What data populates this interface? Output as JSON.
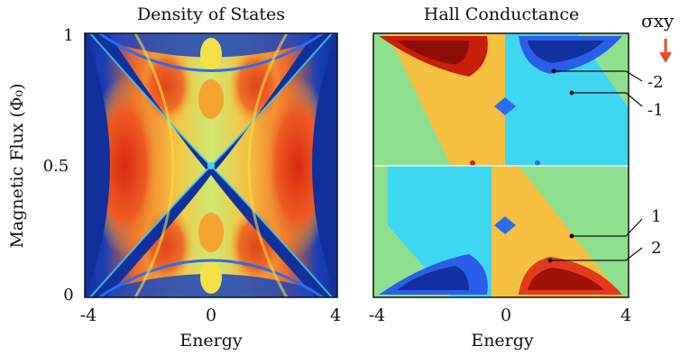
{
  "chart_data": [
    {
      "type": "heatmap",
      "title": "Density of States",
      "xlabel": "Energy",
      "ylabel": "Magnetic Flux (Φ₀)",
      "xlim": [
        -4,
        4
      ],
      "ylim": [
        0,
        1
      ],
      "xticks": [
        "-4",
        "0",
        "4"
      ],
      "yticks": [
        "0",
        "0.5",
        "1"
      ],
      "colormap": "jet",
      "description_values": "Hofstadter butterfly density of states vs energy and magnetic flux"
    },
    {
      "type": "heatmap",
      "title": "Hall Conductance",
      "xlabel": "Energy",
      "xlim": [
        -4,
        4
      ],
      "ylim": [
        0,
        1
      ],
      "xticks": [
        "-4",
        "0",
        "4"
      ],
      "colormap": "jet",
      "legend_title": "σxy",
      "annotations": [
        {
          "label": "-2",
          "energy": 1.8,
          "flux": 0.88
        },
        {
          "label": "-1",
          "energy": 2.3,
          "flux": 0.78
        },
        {
          "label": "1",
          "energy": 2.0,
          "flux": 0.22
        },
        {
          "label": "2",
          "energy": 1.6,
          "flux": 0.12
        }
      ]
    }
  ],
  "colors": {
    "deep_blue": "#10309a",
    "blue": "#2a6df0",
    "cyan": "#3fd6f2",
    "green": "#8ee08e",
    "yellow": "#f6e04a",
    "orange": "#f6a431",
    "red": "#e33a1c",
    "dark_red": "#9e1208",
    "arrow": "#e84b26"
  }
}
